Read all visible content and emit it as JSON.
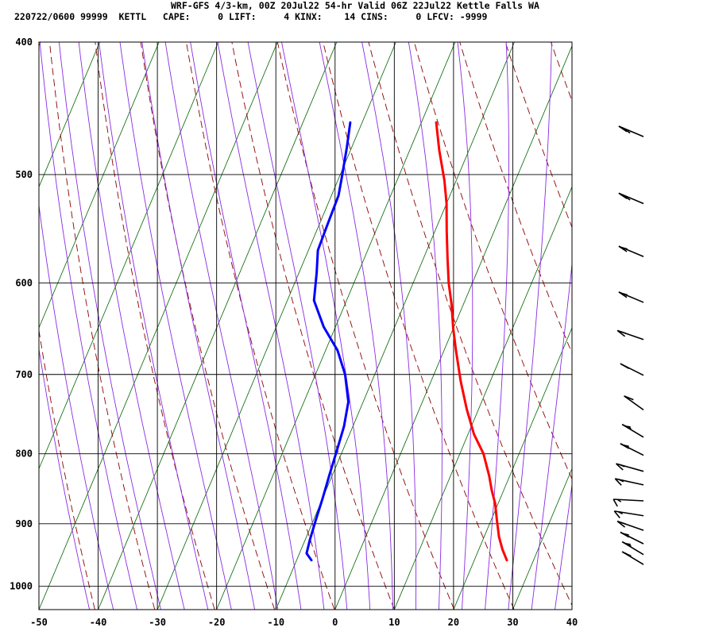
{
  "header": {
    "title": "WRF-GFS 4/3-km, 00Z 20Jul22 54-hr Valid 06Z 22Jul22 Kettle Falls WA",
    "stats": "220722/0600 99999  KETTL   CAPE:     0 LIFT:     4 KINX:    14 CINS:     0 LFCV: -9999"
  },
  "colors": {
    "grid": "#000000",
    "isotherm_skewed": "#006400",
    "dry_adiabat": "#8b0000",
    "moist_adiabat": "#8a2be2",
    "temperature": "#ff0000",
    "dewpoint": "#0000ff",
    "wind_barb": "#000000"
  },
  "chart_data": {
    "type": "line",
    "title": "",
    "xlabel": "",
    "ylabel": "",
    "x_ticks": [
      -50,
      -40,
      -30,
      -20,
      -10,
      0,
      10,
      20,
      30,
      40
    ],
    "y_ticks": [
      400,
      500,
      600,
      700,
      800,
      900,
      1000
    ],
    "xlim": [
      -50,
      40
    ],
    "ylim": [
      1040,
      400
    ],
    "y_scale": "log-pressure (hPa)",
    "grid": true,
    "series": [
      {
        "role": "temperature",
        "points": [
          [
            -17.5,
            458
          ],
          [
            -15,
            480
          ],
          [
            -12,
            505
          ],
          [
            -10,
            525
          ],
          [
            -8,
            550
          ],
          [
            -6,
            575
          ],
          [
            -4,
            600
          ],
          [
            -2,
            622
          ],
          [
            0,
            648
          ],
          [
            2,
            672
          ],
          [
            5,
            708
          ],
          [
            8,
            742
          ],
          [
            11,
            774
          ],
          [
            14,
            800
          ],
          [
            16.5,
            830
          ],
          [
            18,
            851
          ],
          [
            19.5,
            870
          ],
          [
            21,
            895
          ],
          [
            22.5,
            920
          ],
          [
            24,
            940
          ],
          [
            25.5,
            957
          ]
        ]
      },
      {
        "role": "dewpoint",
        "points": [
          [
            -32,
            458
          ],
          [
            -30.8,
            478
          ],
          [
            -29.5,
            503
          ],
          [
            -28.8,
            518
          ],
          [
            -28.6,
            545
          ],
          [
            -28.4,
            568
          ],
          [
            -27,
            590
          ],
          [
            -25.5,
            618
          ],
          [
            -22,
            646
          ],
          [
            -18,
            672
          ],
          [
            -15,
            700
          ],
          [
            -12.5,
            733
          ],
          [
            -11.5,
            764
          ],
          [
            -11,
            795
          ],
          [
            -10.5,
            830
          ],
          [
            -10,
            862
          ],
          [
            -9.6,
            895
          ],
          [
            -9.2,
            925
          ],
          [
            -8.8,
            946
          ],
          [
            -7.5,
            957
          ]
        ]
      }
    ],
    "wind_barbs": [
      {
        "p": 469,
        "dir": 235,
        "kt": 20
      },
      {
        "p": 525,
        "dir": 235,
        "kt": 20
      },
      {
        "p": 574,
        "dir": 235,
        "kt": 15
      },
      {
        "p": 620,
        "dir": 235,
        "kt": 15
      },
      {
        "p": 660,
        "dir": 240,
        "kt": 15
      },
      {
        "p": 701,
        "dir": 230,
        "kt": 10
      },
      {
        "p": 743,
        "dir": 220,
        "kt": 10
      },
      {
        "p": 778,
        "dir": 225,
        "kt": 15
      },
      {
        "p": 802,
        "dir": 230,
        "kt": 15
      },
      {
        "p": 824,
        "dir": 245,
        "kt": 15
      },
      {
        "p": 843,
        "dir": 250,
        "kt": 15
      },
      {
        "p": 866,
        "dir": 265,
        "kt": 15
      },
      {
        "p": 888,
        "dir": 255,
        "kt": 15
      },
      {
        "p": 910,
        "dir": 240,
        "kt": 15
      },
      {
        "p": 931,
        "dir": 230,
        "kt": 15
      },
      {
        "p": 948,
        "dir": 225,
        "kt": 15
      },
      {
        "p": 964,
        "dir": 225,
        "kt": 10
      }
    ]
  }
}
